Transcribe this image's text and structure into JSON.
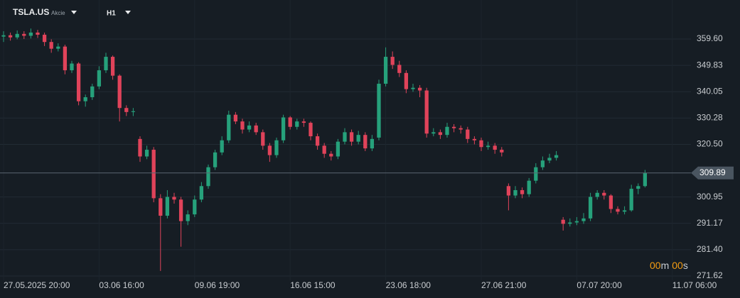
{
  "header": {
    "symbol": "TSLA.US",
    "asset_class": "Akcie",
    "timeframe": "H1"
  },
  "timer": {
    "minutes": "00",
    "minutes_unit": "m",
    "seconds": "00",
    "seconds_unit": "s"
  },
  "chart_data": {
    "type": "candlestick",
    "up_color": "#26a17b",
    "down_color": "#e0435a",
    "grid": true,
    "last_price": 309.89,
    "open": [
      360.5,
      361.0,
      360.2,
      361.5,
      360.8,
      362.0,
      361.2,
      358.5,
      356.0,
      356.8,
      348.0,
      350.5,
      336.5,
      338.0,
      342.0,
      348.0,
      353.0,
      346.0,
      334.0,
      332.5,
      322.5,
      316.0,
      318.5,
      300.5,
      294.0,
      301.0,
      300.0,
      292.0,
      294.5,
      300.0,
      305.0,
      312.0,
      317.5,
      322.0,
      331.5,
      329.0,
      326.0,
      327.5,
      325.0,
      320.0,
      316.5,
      322.0,
      330.5,
      327.0,
      329.0,
      328.5,
      323.5,
      320.0,
      317.0,
      316.0,
      321.5,
      325.0,
      321.5,
      324.0,
      319.0,
      323.0,
      343.0,
      353.0,
      350.0,
      347.0,
      341.0,
      341.5,
      340.5,
      324.5,
      325.0,
      324.0,
      327.0,
      326.5,
      326.0,
      322.5,
      322.0,
      319.5,
      320.0,
      318.5,
      305.0,
      301.5,
      303.5,
      302.0,
      307.0,
      312.0,
      314.5,
      315.5,
      292.5,
      291.0,
      291.5,
      292.0,
      293.0,
      301.0,
      302.5,
      301.5,
      296.5,
      295.5,
      296.0,
      304.0,
      305.0
    ],
    "high": [
      362.5,
      362.0,
      362.8,
      362.5,
      363.5,
      363.0,
      362.0,
      359.5,
      358.0,
      357.5,
      351.5,
      351.0,
      339.0,
      343.0,
      349.5,
      354.5,
      353.5,
      346.5,
      335.0,
      334.0,
      323.5,
      320.0,
      319.5,
      302.0,
      303.5,
      302.5,
      301.0,
      296.0,
      301.5,
      306.5,
      313.0,
      318.5,
      323.5,
      333.0,
      332.5,
      330.0,
      329.0,
      328.5,
      326.0,
      321.0,
      323.0,
      331.5,
      331.0,
      330.0,
      330.0,
      329.0,
      324.5,
      321.0,
      318.0,
      322.5,
      326.5,
      326.0,
      325.5,
      325.0,
      324.0,
      344.5,
      356.5,
      355.0,
      351.5,
      348.0,
      343.0,
      342.5,
      341.5,
      326.5,
      326.0,
      328.5,
      328.0,
      327.5,
      327.0,
      323.5,
      323.0,
      321.5,
      321.0,
      319.5,
      306.0,
      305.0,
      304.5,
      308.0,
      313.5,
      316.0,
      317.0,
      318.0,
      293.5,
      293.0,
      293.5,
      295.0,
      302.5,
      303.5,
      303.5,
      302.0,
      297.5,
      297.5,
      305.5,
      306.0,
      311.0
    ],
    "low": [
      358.5,
      359.0,
      359.5,
      359.6,
      359.8,
      360.0,
      357.0,
      354.5,
      355.0,
      346.5,
      347.0,
      335.0,
      334.5,
      337.0,
      341.0,
      347.0,
      344.5,
      329.0,
      331.0,
      331.0,
      314.0,
      315.0,
      299.0,
      273.5,
      293.0,
      298.5,
      282.5,
      290.5,
      293.5,
      299.0,
      304.0,
      311.0,
      316.5,
      321.0,
      328.0,
      324.5,
      325.0,
      324.0,
      318.5,
      314.0,
      315.5,
      321.0,
      326.0,
      326.0,
      327.0,
      322.0,
      318.5,
      315.5,
      314.5,
      315.0,
      320.5,
      320.0,
      320.5,
      318.0,
      318.0,
      322.0,
      342.0,
      348.5,
      345.5,
      339.5,
      340.0,
      338.0,
      323.0,
      323.5,
      322.5,
      323.0,
      325.0,
      324.5,
      321.0,
      320.5,
      318.0,
      318.5,
      317.0,
      316.0,
      296.0,
      300.5,
      300.5,
      301.0,
      306.0,
      311.0,
      313.5,
      314.5,
      288.5,
      290.0,
      290.5,
      291.0,
      292.0,
      300.0,
      300.0,
      295.0,
      294.5,
      294.5,
      295.5,
      302.0,
      304.5
    ],
    "close": [
      361.0,
      360.2,
      361.5,
      360.8,
      362.0,
      361.2,
      358.5,
      356.0,
      356.8,
      348.0,
      350.5,
      336.5,
      338.0,
      342.0,
      348.0,
      353.0,
      346.0,
      334.0,
      332.5,
      332.8,
      316.0,
      318.5,
      300.5,
      294.0,
      301.0,
      300.0,
      292.0,
      294.5,
      300.0,
      305.0,
      312.0,
      317.5,
      322.0,
      331.5,
      329.0,
      326.0,
      327.5,
      325.0,
      320.0,
      316.5,
      322.0,
      330.5,
      327.0,
      329.0,
      328.5,
      323.5,
      320.0,
      317.0,
      316.0,
      321.5,
      325.0,
      321.5,
      324.0,
      319.0,
      322.5,
      343.0,
      353.0,
      350.0,
      347.0,
      341.0,
      341.5,
      340.5,
      324.5,
      325.0,
      324.0,
      327.0,
      326.5,
      326.0,
      322.5,
      322.0,
      319.5,
      320.0,
      318.5,
      317.5,
      301.5,
      303.5,
      302.0,
      307.0,
      312.0,
      314.5,
      315.5,
      316.5,
      291.0,
      291.5,
      292.0,
      293.0,
      301.0,
      302.5,
      301.5,
      296.5,
      295.5,
      296.0,
      304.0,
      305.0,
      309.89
    ],
    "xlim": [
      -0.52,
      100.73
    ],
    "xticks": [
      {
        "value": 0,
        "label": "27.05.2025  20:00"
      },
      {
        "value": 14,
        "label": "03.06  16:00"
      },
      {
        "value": 28,
        "label": "09.06  19:00"
      },
      {
        "value": 42,
        "label": "16.06  15:00"
      },
      {
        "value": 56,
        "label": "23.06  18:00"
      },
      {
        "value": 70,
        "label": "27.06  21:00"
      },
      {
        "value": 84,
        "label": "07.07  20:00"
      },
      {
        "value": 98,
        "label": "11.07  06:00"
      }
    ],
    "ylim": [
      270.04,
      374.09
    ],
    "yticks": [
      {
        "value": 271.62,
        "label": "271.62"
      },
      {
        "value": 281.4,
        "label": "281.40"
      },
      {
        "value": 291.17,
        "label": "291.17"
      },
      {
        "value": 300.95,
        "label": "300.95"
      },
      {
        "value": 320.5,
        "label": "320.50"
      },
      {
        "value": 330.28,
        "label": "330.28"
      },
      {
        "value": 340.05,
        "label": "340.05"
      },
      {
        "value": 349.83,
        "label": "349.83"
      },
      {
        "value": 359.6,
        "label": "359.60"
      }
    ]
  }
}
